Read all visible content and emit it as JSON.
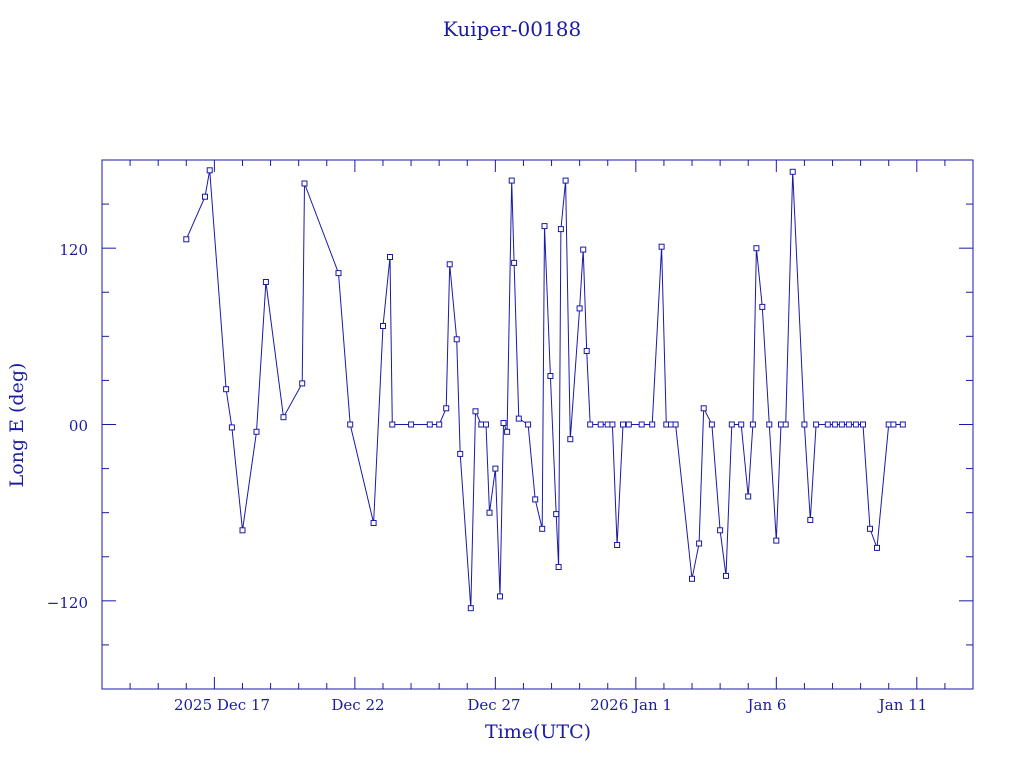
{
  "chart_data": {
    "type": "scatter",
    "title": "Kuiper-00188",
    "xlabel": "Time(UTC)",
    "ylabel": "Long E (deg)",
    "x_tick_labels": [
      "2025 Dec 17",
      "Dec 22",
      "Dec 27",
      "2026 Jan  1",
      "Jan  6",
      "Jan 11"
    ],
    "y_tick_labels": [
      "120",
      "00",
      "−120"
    ],
    "xlim": [
      "2025-12-13T00:00",
      "2026-01-13T00:00"
    ],
    "ylim": [
      -180,
      180
    ],
    "x_ticks": [
      "2025-12-17T00:00",
      "2025-12-22T00:00",
      "2025-12-27T00:00",
      "2026-01-01T00:00",
      "2026-01-06T00:00",
      "2026-01-11T00:00"
    ],
    "y_ticks": [
      120,
      0,
      -120
    ],
    "grid": false,
    "color": "#1a1aa8",
    "series": [
      {
        "x": [
          "2025-12-16T00:00",
          "2025-12-16T16:00",
          "2025-12-16T20:00",
          "2025-12-17T10:00",
          "2025-12-17T15:00",
          "2025-12-18T00:00",
          "2025-12-18T12:00",
          "2025-12-18T20:00",
          "2025-12-19T11:00",
          "2025-12-20T03:00",
          "2025-12-20T05:00",
          "2025-12-21T10:00",
          "2025-12-21T20:00",
          "2025-12-22T16:00",
          "2025-12-23T00:00",
          "2025-12-23T06:00",
          "2025-12-23T08:00",
          "2025-12-24T00:00",
          "2025-12-24T16:00",
          "2025-12-25T00:00",
          "2025-12-25T06:00",
          "2025-12-25T09:00",
          "2025-12-25T15:00",
          "2025-12-25T18:00",
          "2025-12-26T03:00",
          "2025-12-26T07:00",
          "2025-12-26T12:00",
          "2025-12-26T16:00",
          "2025-12-26T19:00",
          "2025-12-27T00:00",
          "2025-12-27T04:00",
          "2025-12-27T07:00",
          "2025-12-27T10:00",
          "2025-12-27T14:00",
          "2025-12-27T16:00",
          "2025-12-27T20:00",
          "2025-12-28T04:00",
          "2025-12-28T10:00",
          "2025-12-28T16:00",
          "2025-12-28T18:00",
          "2025-12-28T23:00",
          "2025-12-29T04:00",
          "2025-12-29T06:00",
          "2025-12-29T08:00",
          "2025-12-29T12:00",
          "2025-12-29T16:00",
          "2025-12-30T00:00",
          "2025-12-30T03:00",
          "2025-12-30T06:00",
          "2025-12-30T09:00",
          "2025-12-30T18:00",
          "2025-12-31T00:00",
          "2025-12-31T04:00",
          "2025-12-31T08:00",
          "2025-12-31T13:00",
          "2025-12-31T18:00",
          "2026-01-01T05:00",
          "2026-01-01T14:00",
          "2026-01-01T22:00",
          "2026-01-02T02:00",
          "2026-01-02T06:00",
          "2026-01-02T10:00",
          "2026-01-03T00:00",
          "2026-01-03T06:00",
          "2026-01-03T10:00",
          "2026-01-03T17:00",
          "2026-01-04T00:00",
          "2026-01-04T05:00",
          "2026-01-04T10:00",
          "2026-01-04T18:00",
          "2026-01-05T00:00",
          "2026-01-05T04:00",
          "2026-01-05T07:00",
          "2026-01-05T12:00",
          "2026-01-05T18:00",
          "2026-01-06T00:00",
          "2026-01-06T04:00",
          "2026-01-06T08:00",
          "2026-01-06T14:00",
          "2026-01-07T00:00",
          "2026-01-07T05:00",
          "2026-01-07T10:00",
          "2026-01-07T20:00",
          "2026-01-08T02:00",
          "2026-01-08T08:00",
          "2026-01-08T14:00",
          "2026-01-08T20:00",
          "2026-01-09T02:00",
          "2026-01-09T08:00",
          "2026-01-09T14:00",
          "2026-01-10T00:00",
          "2026-01-10T04:00",
          "2026-01-10T12:00"
        ],
        "y": [
          126,
          155,
          173,
          24,
          -2,
          -72,
          -5,
          97,
          5,
          28,
          164,
          103,
          0,
          -67,
          67,
          114,
          0,
          0,
          0,
          0,
          11,
          109,
          58,
          -20,
          -125,
          9,
          0,
          0,
          -60,
          -30,
          -117,
          1,
          -5,
          166,
          110,
          4,
          0,
          -51,
          -71,
          135,
          33,
          -61,
          -97,
          133,
          166,
          -10,
          79,
          119,
          50,
          0,
          0,
          0,
          0,
          -82,
          0,
          0,
          0,
          0,
          121,
          0,
          0,
          0,
          -105,
          -81,
          11,
          0,
          -72,
          -103,
          0,
          0,
          -49,
          0,
          120,
          80,
          0,
          -79,
          0,
          0,
          172,
          0,
          -65,
          0,
          0,
          0,
          0,
          0,
          0,
          0,
          -71,
          -84,
          0,
          0,
          0
        ]
      }
    ]
  }
}
